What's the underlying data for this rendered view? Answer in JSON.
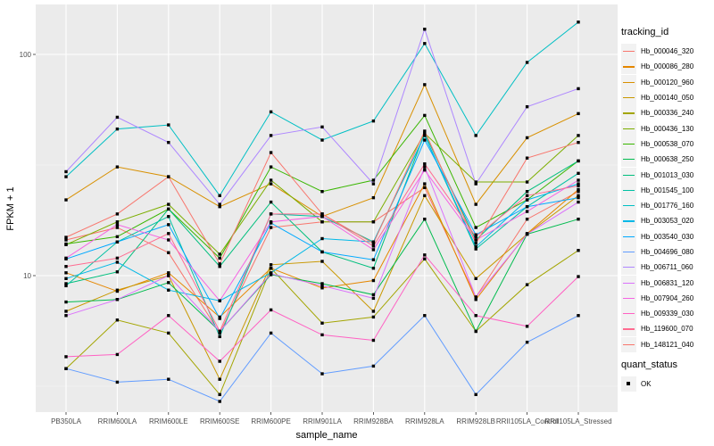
{
  "chart_data": {
    "type": "line",
    "xlabel": "sample_name",
    "ylabel": "FPKM + 1",
    "yscale": "log10",
    "ylim": [
      2.6,
      155
    ],
    "yticks": [
      10,
      100
    ],
    "ytick_labels": [
      "10",
      "100"
    ],
    "grid": true,
    "legend_position": "right",
    "categories": [
      "PB350LA",
      "RRIM600LA",
      "RRIM600LE",
      "RRIM600SE",
      "RRIM600PE",
      "RRIM901LA",
      "RRIM928BA",
      "RRIM928LA",
      "RRIM928LB",
      "RRII105LA_Control",
      "RRII105LA_Stressed"
    ],
    "legend": {
      "title": "tracking_id",
      "shape_title": "quant_status",
      "shape_entries": [
        "OK"
      ]
    },
    "series": [
      {
        "name": "Hb_000046_320",
        "color": "#F8766D",
        "values": [
          14.5,
          16.5,
          12.7,
          5.5,
          16.5,
          17.5,
          17.5,
          25,
          8.0,
          18,
          24
        ]
      },
      {
        "name": "Hb_000086_280",
        "color": "#E58700",
        "values": [
          10.3,
          8.5,
          10.3,
          6.5,
          10.8,
          8.8,
          9.5,
          26,
          7.8,
          15.5,
          24.5
        ]
      },
      {
        "name": "Hb_000120_960",
        "color": "#D89000",
        "values": [
          22,
          31,
          28,
          20.5,
          26,
          18.5,
          22.5,
          73,
          21,
          42,
          54
        ]
      },
      {
        "name": "Hb_000140_050",
        "color": "#C99800",
        "values": [
          6.9,
          8.6,
          10.0,
          3.4,
          11.2,
          11.6,
          6.9,
          23,
          9.7,
          15.4,
          23
        ]
      },
      {
        "name": "Hb_000336_240",
        "color": "#A3A500",
        "values": [
          3.8,
          6.3,
          5.5,
          2.9,
          10.8,
          6.1,
          6.5,
          11.9,
          5.6,
          9.1,
          13
        ]
      },
      {
        "name": "Hb_000436_130",
        "color": "#7CAE00",
        "values": [
          13.8,
          17.5,
          21.0,
          12.5,
          27,
          17.5,
          17.5,
          44,
          26.5,
          26.5,
          43
        ]
      },
      {
        "name": "Hb_000538_070",
        "color": "#39B600",
        "values": [
          13.9,
          15.0,
          20.0,
          12.0,
          31,
          24,
          27,
          53,
          16.5,
          22,
          33
        ]
      },
      {
        "name": "Hb_000638_250",
        "color": "#00BB4E",
        "values": [
          7.6,
          7.8,
          9.3,
          5.6,
          10.1,
          9.2,
          8.2,
          18,
          5.6,
          15.4,
          18
        ]
      },
      {
        "name": "Hb_001013_030",
        "color": "#00BF7D",
        "values": [
          9.2,
          10.4,
          20.0,
          11.0,
          21.5,
          12.8,
          10.8,
          44,
          14.5,
          24,
          33
        ]
      },
      {
        "name": "Hb_001545_100",
        "color": "#00C1A3",
        "values": [
          9.0,
          14.2,
          18.5,
          5.3,
          19,
          18.5,
          14.2,
          43,
          13.2,
          20.5,
          29
        ]
      },
      {
        "name": "Hb_001776_160",
        "color": "#00BFC4",
        "values": [
          28,
          46,
          48,
          23,
          55,
          41,
          50,
          112,
          43,
          92,
          140
        ]
      },
      {
        "name": "Hb_003053_020",
        "color": "#00B8E7",
        "values": [
          9.7,
          11.5,
          8.6,
          7.7,
          10.3,
          14.7,
          14.2,
          43,
          13.5,
          22,
          26
        ]
      },
      {
        "name": "Hb_003540_030",
        "color": "#00A9FF",
        "values": [
          11.9,
          14.2,
          17.0,
          6.4,
          17.3,
          12.8,
          11.8,
          41,
          15.3,
          20.5,
          22.5
        ]
      },
      {
        "name": "Hb_004696_080",
        "color": "#619CFF",
        "values": [
          3.8,
          3.3,
          3.4,
          2.7,
          5.5,
          3.6,
          3.9,
          6.6,
          2.9,
          5.0,
          6.6
        ]
      },
      {
        "name": "Hb_006711_060",
        "color": "#AE87FF",
        "values": [
          29.5,
          52,
          40,
          21,
          43,
          47,
          26,
          130,
          26,
          58,
          70
        ]
      },
      {
        "name": "Hb_006831_120",
        "color": "#DB72FB",
        "values": [
          6.6,
          7.8,
          10.0,
          5.6,
          10.2,
          9.0,
          7.9,
          31,
          8.0,
          15.4,
          21.5
        ]
      },
      {
        "name": "Hb_007904_260",
        "color": "#F564E3",
        "values": [
          12.0,
          17.0,
          14.5,
          7.7,
          17.5,
          18.5,
          13.1,
          30,
          14.5,
          19.5,
          27
        ]
      },
      {
        "name": "Hb_009339_030",
        "color": "#FF61C3",
        "values": [
          4.3,
          4.4,
          6.6,
          4.1,
          7.0,
          5.4,
          5.1,
          12.4,
          6.6,
          5.9,
          9.9
        ]
      },
      {
        "name": "Hb_119600_070",
        "color": "#FF6C91",
        "values": [
          11.0,
          12.0,
          15.5,
          5.6,
          19,
          19,
          13.6,
          32,
          15.0,
          23,
          25.5
        ]
      },
      {
        "name": "Hb_148121_040",
        "color": "#F8766D",
        "values": [
          14.9,
          19.0,
          28,
          11.3,
          36,
          19,
          14.0,
          45,
          14.0,
          34,
          40
        ]
      }
    ]
  }
}
